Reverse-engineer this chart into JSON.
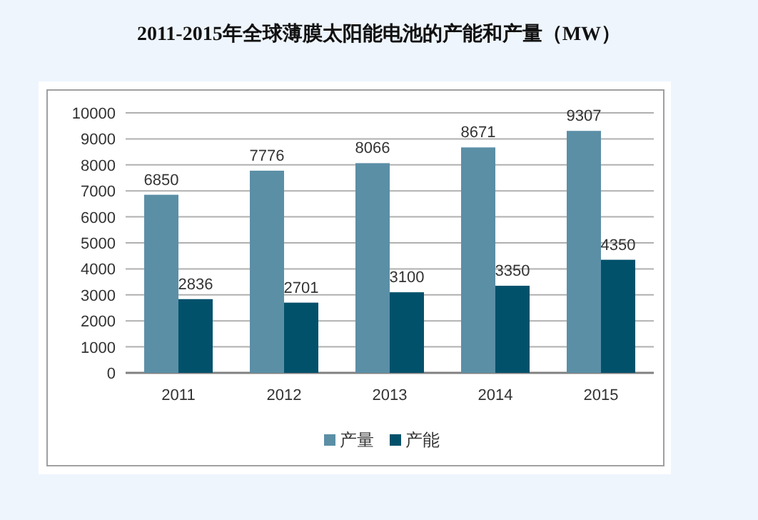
{
  "chart_data": {
    "type": "bar",
    "title": "2011-2015年全球薄膜太阳能电池的产能和产量（MW）",
    "categories": [
      "2011",
      "2012",
      "2013",
      "2014",
      "2015"
    ],
    "series": [
      {
        "name": "产量",
        "color": "#5b8fa6",
        "values": [
          6850,
          7776,
          8066,
          8671,
          9307
        ]
      },
      {
        "name": "产能",
        "color": "#02516b",
        "values": [
          2836,
          2701,
          3100,
          3350,
          4350
        ]
      }
    ],
    "ylim": [
      0,
      10000
    ],
    "yticks": [
      0,
      1000,
      2000,
      3000,
      4000,
      5000,
      6000,
      7000,
      8000,
      9000,
      10000
    ],
    "grid": "y",
    "legend": "bottom",
    "data_labels": true
  }
}
